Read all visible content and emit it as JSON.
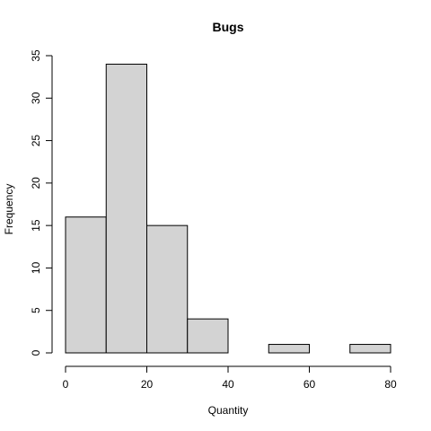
{
  "chart_data": {
    "type": "bar",
    "title": "Bugs",
    "xlabel": "Quantity",
    "ylabel": "Frequency",
    "bins": [
      {
        "from": 0,
        "to": 10,
        "count": 16
      },
      {
        "from": 10,
        "to": 20,
        "count": 34
      },
      {
        "from": 20,
        "to": 30,
        "count": 15
      },
      {
        "from": 30,
        "to": 40,
        "count": 4
      },
      {
        "from": 40,
        "to": 50,
        "count": 0
      },
      {
        "from": 50,
        "to": 60,
        "count": 1
      },
      {
        "from": 60,
        "to": 70,
        "count": 0
      },
      {
        "from": 70,
        "to": 80,
        "count": 1
      }
    ],
    "xlim": [
      0,
      80
    ],
    "ylim": [
      0,
      35
    ],
    "x_ticks": [
      0,
      20,
      40,
      60,
      80
    ],
    "y_ticks": [
      0,
      5,
      10,
      15,
      20,
      25,
      30,
      35
    ],
    "bar_color": "#d3d3d3",
    "grid": false
  }
}
